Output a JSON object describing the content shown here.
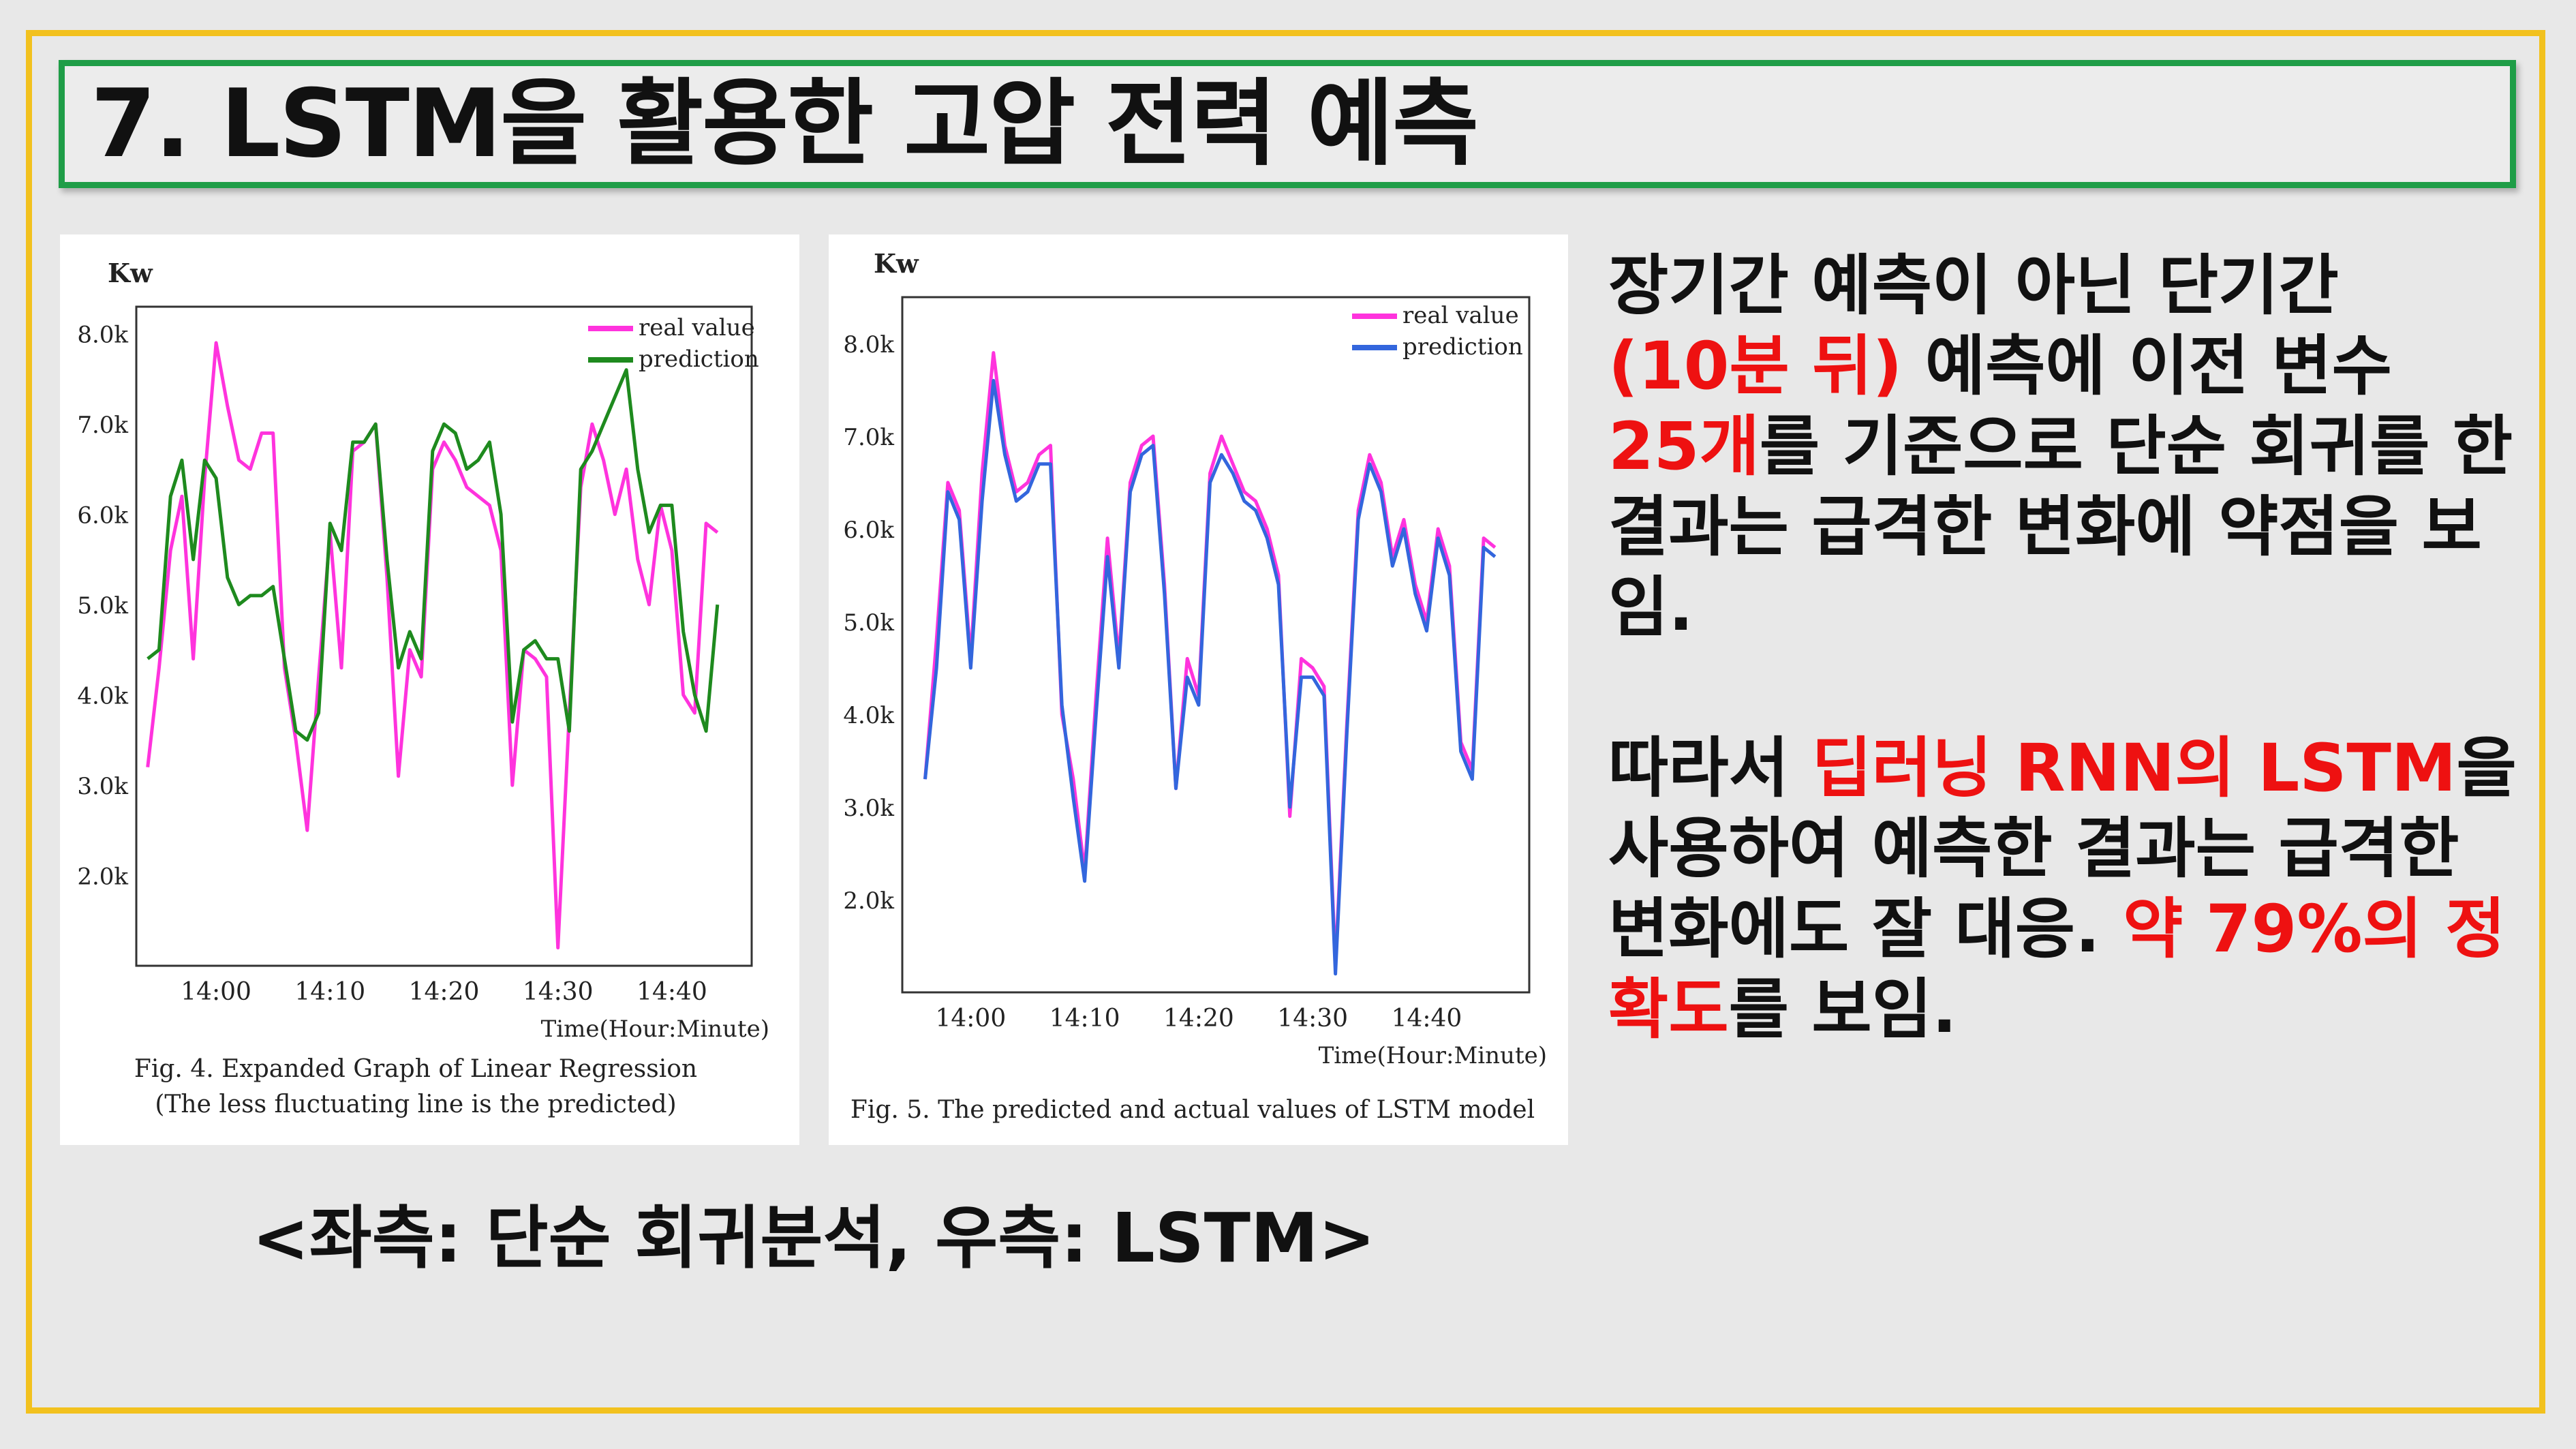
{
  "title": "7. LSTM을 활용한 고압 전력 예측",
  "bottom_caption": "<좌측: 단순 회귀분석, 우측: LSTM>",
  "colors": {
    "highlight_red": "#ee1111",
    "border_yellow": "#f2c11e",
    "title_border_green": "#1f9d47"
  },
  "description": {
    "para1": [
      {
        "text": "장기간 예측이 아닌 단기간",
        "highlight": false
      },
      {
        "text": "(10분 뒤)",
        "highlight": true
      },
      {
        "text": " 예측에 이전 변수",
        "highlight": false
      },
      {
        "text": "25개",
        "highlight": true
      },
      {
        "text": "를 기준으로 단순 회귀를 한 결과는 급격한 변화에 약점을 보임.",
        "highlight": false
      }
    ],
    "para2": [
      {
        "text": "따라서 ",
        "highlight": false
      },
      {
        "text": "딥러닝 RNN의 LSTM",
        "highlight": true
      },
      {
        "text": "을 사용하여 예측한 결과는 급격한 변화에도 잘 대응. ",
        "highlight": false
      },
      {
        "text": "약 79%의 정확도",
        "highlight": true
      },
      {
        "text": "를 보임.",
        "highlight": false
      }
    ]
  },
  "chart_data": [
    {
      "type": "line",
      "ylabel": "Kw",
      "xlabel": "Time(Hour:Minute)",
      "y_ticks": [
        "8.0k",
        "7.0k",
        "6.0k",
        "5.0k",
        "4.0k",
        "3.0k",
        "2.0k"
      ],
      "x_ticks": [
        "14:00",
        "14:10",
        "14:20",
        "14:30",
        "14:40"
      ],
      "ylim": [
        1000,
        8300
      ],
      "xlim": [
        -7,
        47
      ],
      "legend_position": "top-right",
      "caption_lines": [
        "Fig. 4. Expanded Graph of Linear Regression",
        "(The less fluctuating line is the predicted)"
      ],
      "series": [
        {
          "name": "real value",
          "color": "#ff33dd",
          "x": [
            -6,
            -5,
            -4,
            -3,
            -2,
            -1,
            0,
            1,
            2,
            3,
            4,
            5,
            6,
            7,
            8,
            9,
            10,
            11,
            12,
            13,
            14,
            15,
            16,
            17,
            18,
            19,
            20,
            21,
            22,
            23,
            24,
            25,
            26,
            27,
            28,
            29,
            30,
            31,
            32,
            33,
            34,
            35,
            36,
            37,
            38,
            39,
            40,
            41,
            42,
            43,
            44
          ],
          "y": [
            3200,
            4300,
            5600,
            6200,
            4400,
            6400,
            7900,
            7200,
            6600,
            6500,
            6900,
            6900,
            4300,
            3500,
            2500,
            4200,
            5800,
            4300,
            6700,
            6800,
            7000,
            5300,
            3100,
            4500,
            4200,
            6500,
            6800,
            6600,
            6300,
            6200,
            6100,
            5600,
            3000,
            4500,
            4400,
            4200,
            1200,
            3800,
            6300,
            7000,
            6600,
            6000,
            6500,
            5500,
            5000,
            6100,
            5600,
            4000,
            3800,
            5900,
            5800
          ]
        },
        {
          "name": "prediction",
          "color": "#1e8a1e",
          "x": [
            -6,
            -5,
            -4,
            -3,
            -2,
            -1,
            0,
            1,
            2,
            3,
            4,
            5,
            6,
            7,
            8,
            9,
            10,
            11,
            12,
            13,
            14,
            15,
            16,
            17,
            18,
            19,
            20,
            21,
            22,
            23,
            24,
            25,
            26,
            27,
            28,
            29,
            30,
            31,
            32,
            33,
            34,
            35,
            36,
            37,
            38,
            39,
            40,
            41,
            42,
            43,
            44
          ],
          "y": [
            4400,
            4500,
            6200,
            6600,
            5500,
            6600,
            6400,
            5300,
            5000,
            5100,
            5100,
            5200,
            4400,
            3600,
            3500,
            3800,
            5900,
            5600,
            6800,
            6800,
            7000,
            5500,
            4300,
            4700,
            4400,
            6700,
            7000,
            6900,
            6500,
            6600,
            6800,
            6000,
            3700,
            4500,
            4600,
            4400,
            4400,
            3600,
            6500,
            6700,
            7000,
            7300,
            7600,
            6500,
            5800,
            6100,
            6100,
            4700,
            4000,
            3600,
            5000
          ]
        }
      ]
    },
    {
      "type": "line",
      "ylabel": "Kw",
      "xlabel": "Time(Hour:Minute)",
      "y_ticks": [
        "8.0k",
        "7.0k",
        "6.0k",
        "5.0k",
        "4.0k",
        "3.0k",
        "2.0k"
      ],
      "x_ticks": [
        "14:00",
        "14:10",
        "14:20",
        "14:30",
        "14:40"
      ],
      "ylim": [
        1000,
        8500
      ],
      "xlim": [
        -6,
        49
      ],
      "legend_position": "top-right",
      "caption_lines": [
        "Fig. 5.  The predicted and actual values of LSTM model"
      ],
      "series": [
        {
          "name": "real value",
          "color": "#ff33dd",
          "x": [
            -4,
            -3,
            -2,
            -1,
            0,
            1,
            2,
            3,
            4,
            5,
            6,
            7,
            8,
            9,
            10,
            11,
            12,
            13,
            14,
            15,
            16,
            17,
            18,
            19,
            20,
            21,
            22,
            23,
            24,
            25,
            26,
            27,
            28,
            29,
            30,
            31,
            32,
            33,
            34,
            35,
            36,
            37,
            38,
            39,
            40,
            41,
            42,
            43,
            44,
            45,
            46
          ],
          "y": [
            3300,
            4800,
            6500,
            6200,
            4600,
            6600,
            7900,
            6900,
            6400,
            6500,
            6800,
            6900,
            4000,
            3300,
            2300,
            4200,
            5900,
            4600,
            6500,
            6900,
            7000,
            5400,
            3200,
            4600,
            4200,
            6600,
            7000,
            6700,
            6400,
            6300,
            6000,
            5500,
            2900,
            4600,
            4500,
            4300,
            1300,
            3900,
            6200,
            6800,
            6500,
            5700,
            6100,
            5400,
            5000,
            6000,
            5600,
            3700,
            3400,
            5900,
            5800
          ]
        },
        {
          "name": "prediction",
          "color": "#3366dd",
          "x": [
            -4,
            -3,
            -2,
            -1,
            0,
            1,
            2,
            3,
            4,
            5,
            6,
            7,
            8,
            9,
            10,
            11,
            12,
            13,
            14,
            15,
            16,
            17,
            18,
            19,
            20,
            21,
            22,
            23,
            24,
            25,
            26,
            27,
            28,
            29,
            30,
            31,
            32,
            33,
            34,
            35,
            36,
            37,
            38,
            39,
            40,
            41,
            42,
            43,
            44,
            45,
            46
          ],
          "y": [
            3300,
            4500,
            6400,
            6100,
            4500,
            6300,
            7600,
            6800,
            6300,
            6400,
            6700,
            6700,
            4100,
            3100,
            2200,
            4000,
            5700,
            4500,
            6400,
            6800,
            6900,
            5300,
            3200,
            4400,
            4100,
            6500,
            6800,
            6600,
            6300,
            6200,
            5900,
            5400,
            3000,
            4400,
            4400,
            4200,
            1200,
            3800,
            6100,
            6700,
            6400,
            5600,
            6000,
            5300,
            4900,
            5900,
            5500,
            3600,
            3300,
            5800,
            5700
          ]
        }
      ]
    }
  ]
}
